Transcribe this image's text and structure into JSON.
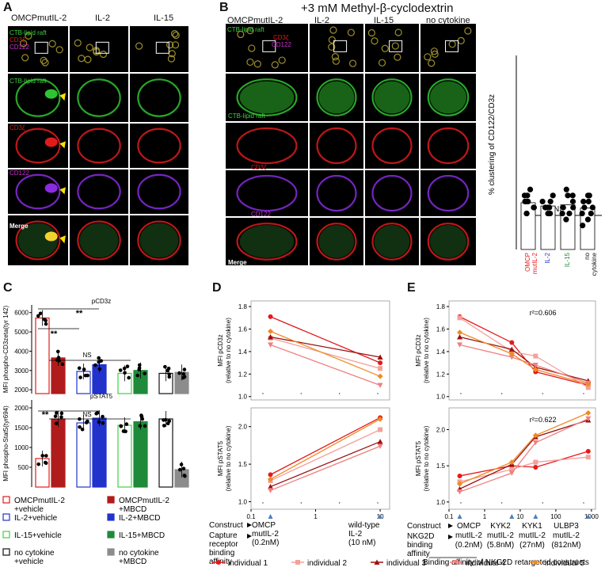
{
  "panels": {
    "A": "A",
    "B": "B",
    "C": "C",
    "D": "D",
    "E": "E"
  },
  "panel_a": {
    "columns": [
      "OMCPmutIL-2",
      "IL-2",
      "IL-15"
    ],
    "row_labels": {
      "ctb_top": "CTB-lipid raft",
      "cd3_top": "CD3ζ",
      "cd122_top": "CD122",
      "ctb": "CTB-lipid raft",
      "cd3": "CD3ζ",
      "cd122": "CD122",
      "merge": "Merge"
    }
  },
  "panel_b": {
    "title": "+3 mM Methyl-β-cyclodextrin",
    "columns": [
      "OMCPmutIL-2",
      "IL-2",
      "IL-15",
      "no cytokine"
    ],
    "row_labels": {
      "ctb_top": "CTB-lipid raft",
      "cd3_top": "CD3ζ",
      "cd122_top": "CD122",
      "ctb": "CTB-lipid raft",
      "cd3": "CD3ζ",
      "cd122": "CD122",
      "merge": "Merge"
    }
  },
  "colors": {
    "green": "#3fd23f",
    "red": "#e41a1c",
    "magenta": "#cc33cc",
    "blue": "#2233cc",
    "dkred": "#b01c1c",
    "dkgreen": "#1f8a3a",
    "grey": "#8c8c8c",
    "orange": "#f08a24",
    "pink": "#f08080"
  },
  "chart_data": [
    {
      "id": "B-scatter",
      "type": "scatter",
      "ylabel": "% clustering of CD122/CD3z",
      "categories": [
        "OMCP mutIL-2",
        "IL-2",
        "IL-15",
        "no cytokine"
      ],
      "category_lines": [
        [
          "OMCP",
          "mutIL-2"
        ],
        [
          "IL-2"
        ],
        [
          "IL-15"
        ],
        [
          "no",
          "cytokine"
        ]
      ],
      "category_colors": [
        "#e41a1c",
        "#2233cc",
        "#1f8a3a",
        "#111111"
      ],
      "annotation": "NS",
      "points": [
        [
          8,
          9,
          7,
          6,
          10,
          8,
          7,
          9,
          6,
          8
        ],
        [
          7,
          8,
          6,
          9,
          7,
          8,
          6,
          7
        ],
        [
          9,
          7,
          6,
          10,
          8,
          7,
          5,
          9,
          6
        ],
        [
          8,
          6,
          9,
          7,
          5,
          8,
          6,
          9,
          7,
          4
        ]
      ]
    },
    {
      "id": "C-top",
      "type": "bar",
      "title": "pCD3z",
      "ylabel": "MFI phospho-CD3zeta(tyr 142)",
      "yticks": [
        "6000",
        "5000",
        "4000",
        "3000",
        "2000"
      ],
      "ylim": [
        1800,
        6400
      ],
      "values": [
        5720,
        3650,
        2950,
        3300,
        2850,
        3000,
        2850,
        2900
      ],
      "annotations": [
        "**",
        "**",
        "NS"
      ]
    },
    {
      "id": "C-bottom",
      "type": "bar",
      "title": "pSTAT5",
      "ylabel": "MFI phospho-Stat5(tyr694)",
      "yticks": [
        "2000",
        "1500",
        "1000",
        "500"
      ],
      "ylim": [
        0,
        2200
      ],
      "values": [
        720,
        1720,
        1620,
        1740,
        1560,
        1650,
        1720,
        440
      ],
      "annotations": [
        "**",
        "NS"
      ]
    },
    {
      "id": "C-legend",
      "type": "legend",
      "entries": [
        {
          "lines": [
            "OMCPmutIL-2",
            "+vehicle"
          ],
          "color": "#e41a1c",
          "filled": false
        },
        {
          "lines": [
            "OMCPmutIL-2",
            "+MBCD"
          ],
          "color": "#b01c1c",
          "filled": true
        },
        {
          "lines": [
            "IL-2+vehicle"
          ],
          "color": "#2233cc",
          "filled": false
        },
        {
          "lines": [
            "IL-2+MBCD"
          ],
          "color": "#2233cc",
          "filled": true
        },
        {
          "lines": [
            "IL-15+vehicle"
          ],
          "color": "#3fd23f",
          "filled": false
        },
        {
          "lines": [
            "IL-15+MBCD"
          ],
          "color": "#1f8a3a",
          "filled": true
        },
        {
          "lines": [
            "no cytokine",
            "+vehicle"
          ],
          "color": "#111111",
          "filled": false
        },
        {
          "lines": [
            "no cytokine",
            "+MBCD"
          ],
          "color": "#8c8c8c",
          "filled": true
        }
      ]
    },
    {
      "id": "D-top",
      "type": "line",
      "xscale": "log",
      "ylabel": "MFI pCD3z",
      "ylabel2": "(relative to no cytokine)",
      "yticks": [
        "1.8",
        "1.6",
        "1.4",
        "1.2",
        "1.0"
      ],
      "ylim": [
        0.97,
        1.85
      ],
      "xticks": [
        "0.1",
        "1",
        "10"
      ],
      "x": [
        0.2,
        10
      ],
      "series": [
        {
          "name": "individual 1",
          "values": [
            1.71,
            1.3
          ]
        },
        {
          "name": "individual 2",
          "values": [
            1.52,
            1.25
          ]
        },
        {
          "name": "individual 3",
          "values": [
            1.53,
            1.35
          ]
        },
        {
          "name": "individual 4",
          "values": [
            1.46,
            1.1
          ]
        },
        {
          "name": "individual 5",
          "values": [
            1.58,
            1.18
          ]
        }
      ]
    },
    {
      "id": "D-bottom",
      "type": "line",
      "xscale": "log",
      "ylabel": "MFI pSTAT5",
      "ylabel2": "(relative to no cytokine)",
      "yticks": [
        "2.0",
        "1.5",
        "1.0"
      ],
      "ylim": [
        0.9,
        2.25
      ],
      "x": [
        0.2,
        10
      ],
      "series": [
        {
          "name": "individual 1",
          "values": [
            1.36,
            2.12
          ]
        },
        {
          "name": "individual 2",
          "values": [
            1.28,
            1.96
          ]
        },
        {
          "name": "individual 3",
          "values": [
            1.2,
            1.8
          ]
        },
        {
          "name": "individual 4",
          "values": [
            1.15,
            1.74
          ]
        },
        {
          "name": "individual 5",
          "values": [
            1.3,
            2.1
          ]
        }
      ],
      "xaxis_block": {
        "row1": "Construct",
        "row2": [
          "Capture",
          "receptor",
          "binding",
          "affinity"
        ],
        "c1": [
          "OMCP",
          "mutIL-2",
          "(0.2nM)"
        ],
        "c2": [
          "wild-type",
          "IL-2",
          "(10 nM)"
        ]
      }
    },
    {
      "id": "E-top",
      "type": "line",
      "xscale": "log",
      "ylabel": "MFI pCD3z",
      "ylabel2": "(relative to no cytokine)",
      "yticks": [
        "1.8",
        "1.6",
        "1.4",
        "1.2",
        "1.0"
      ],
      "ylim": [
        0.97,
        1.85
      ],
      "annotation": "r²=0.606",
      "x": [
        0.2,
        5.8,
        27,
        812
      ],
      "series": [
        {
          "name": "individual 1",
          "values": [
            1.71,
            1.48,
            1.22,
            1.1
          ]
        },
        {
          "name": "individual 2",
          "values": [
            1.7,
            1.4,
            1.36,
            1.08
          ]
        },
        {
          "name": "individual 3",
          "values": [
            1.53,
            1.42,
            1.26,
            1.14
          ]
        },
        {
          "name": "individual 4",
          "values": [
            1.46,
            1.35,
            1.28,
            1.12
          ]
        },
        {
          "name": "individual 5",
          "values": [
            1.57,
            1.38,
            1.24,
            1.11
          ]
        }
      ]
    },
    {
      "id": "E-bottom",
      "type": "line",
      "xscale": "log",
      "ylabel": "MFI pSTAT5",
      "ylabel2": "(relative to no cytokine)",
      "yticks": [
        "2.0",
        "1.5",
        "1.0"
      ],
      "ylim": [
        0.9,
        2.3
      ],
      "xticks": [
        "0.1",
        "1",
        "10",
        "100",
        "1000"
      ],
      "annotation": "r²=0.622",
      "x": [
        0.2,
        5.8,
        27,
        812
      ],
      "series": [
        {
          "name": "individual 1",
          "values": [
            1.36,
            1.5,
            1.48,
            1.7
          ]
        },
        {
          "name": "individual 2",
          "values": [
            1.28,
            1.45,
            1.55,
            1.62
          ]
        },
        {
          "name": "individual 3",
          "values": [
            1.18,
            1.52,
            1.9,
            2.13
          ]
        },
        {
          "name": "individual 4",
          "values": [
            1.14,
            1.4,
            1.82,
            2.15
          ]
        },
        {
          "name": "individual 5",
          "values": [
            1.25,
            1.55,
            1.92,
            2.23
          ]
        }
      ],
      "xaxis_block": {
        "row1": "Construct",
        "row2": [
          "NKG2D",
          "binding",
          "affinity"
        ],
        "cols": [
          [
            "OMCP",
            "mutIL-2",
            "(0.2nM)"
          ],
          [
            "KYK2",
            "mutIL-2",
            "(5.8nM)"
          ],
          [
            "KYK1",
            "mutIL-2",
            "(27nM)"
          ],
          [
            "ULBP3",
            "mutIL-2",
            "(812nM)"
          ]
        ],
        "caption": "Binding affinity of NKG2D retargeted constructs"
      }
    }
  ],
  "legend_individuals": [
    {
      "name": "individual 1",
      "color": "#e41a1c",
      "marker": "circle"
    },
    {
      "name": "individual 2",
      "color": "#f4a09a",
      "marker": "square"
    },
    {
      "name": "individual 3",
      "color": "#9b1010",
      "marker": "triangle"
    },
    {
      "name": "individual 4",
      "color": "#f07f7f",
      "marker": "tri-down"
    },
    {
      "name": "individual 5",
      "color": "#f08a24",
      "marker": "diamond"
    }
  ]
}
